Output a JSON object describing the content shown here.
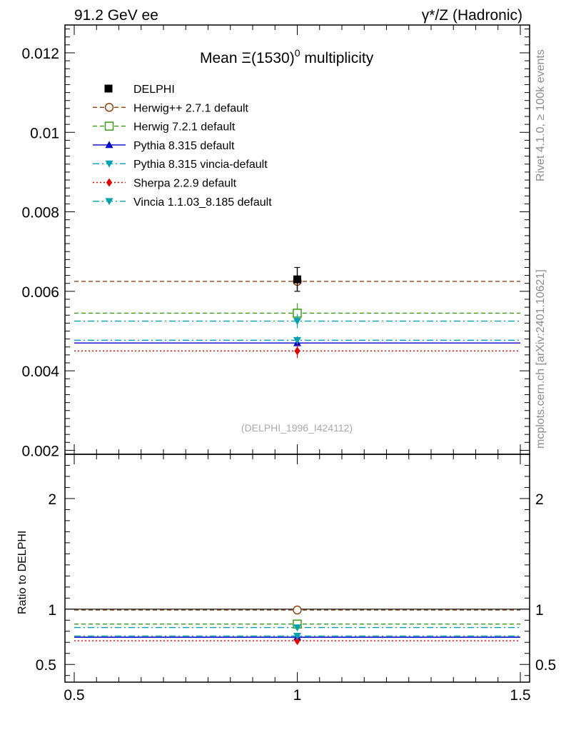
{
  "header": {
    "left": "91.2 GeV ee",
    "right": "γ*/Z (Hadronic)"
  },
  "side": {
    "rivet": "Rivet 4.1.0, ≥ 100k events",
    "mcplots": "mcplots.cern.ch [arXiv:2401.10621]"
  },
  "chart_data": {
    "type": "scatter",
    "title": "Mean Ξ(1530)⁰ multiplicity",
    "title_main": "Mean Ξ(1530)",
    "title_sup": "0",
    "watermark": "(DELPHI_1996_I424112)",
    "x_range": [
      0.5,
      1.5
    ],
    "x_ticks": [
      "0.5",
      "1",
      "1.5"
    ],
    "main": {
      "ylim": [
        0.0019,
        0.0127
      ],
      "y_ticks": [
        "0.002",
        "0.004",
        "0.006",
        "0.008",
        "0.01",
        "0.012"
      ]
    },
    "ratio": {
      "ylabel": "Ratio to DELPHI",
      "ylim": [
        0.34,
        2.4
      ],
      "y_ticks": [
        "0.5",
        "1",
        "2"
      ]
    },
    "data_series": {
      "name": "DELPHI",
      "x": 1.0,
      "y": 0.0063,
      "err_stat": 0.0002,
      "err_tot": 0.0003,
      "color": "#000000"
    },
    "series": [
      {
        "name": "Herwig++ 2.7.1 default",
        "value": 0.00625,
        "err": 0.0002,
        "color": "#8B4513",
        "dash": "dashed",
        "marker": "open-circle"
      },
      {
        "name": "Herwig 7.2.1 default",
        "value": 0.00545,
        "err": 0.00025,
        "color": "#3a9a1a",
        "dash": "dashed",
        "marker": "open-square"
      },
      {
        "name": "Pythia 8.315 default",
        "value": 0.0047,
        "err": 0.0001,
        "color": "#0000cc",
        "dash": "solid",
        "marker": "triangle-up"
      },
      {
        "name": "Pythia 8.315 vincia-default",
        "value": 0.00525,
        "err": 0.00018,
        "color": "#00a0b0",
        "dash": "dashdot",
        "marker": "triangle-down"
      },
      {
        "name": "Sherpa 2.2.9 default",
        "value": 0.0045,
        "err": 0.00018,
        "color": "#e00000",
        "dash": "dotted",
        "marker": "diamond"
      },
      {
        "name": "Vincia 1.1.03_8.185 default",
        "value": 0.00477,
        "err": 0.0001,
        "color": "#00a0b0",
        "dash": "dashdot",
        "marker": "triangle-down"
      }
    ]
  }
}
